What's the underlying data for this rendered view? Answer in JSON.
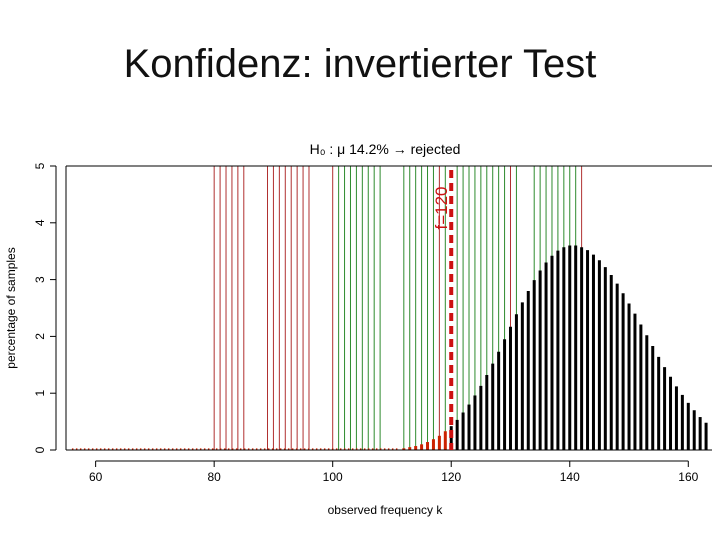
{
  "slide": {
    "title": "Konfidenz: invertierter Test"
  },
  "chart_data": {
    "type": "bar",
    "title": "H₀ : μ   14.2% → rejected",
    "xlabel": "observed frequency k",
    "ylabel": "percentage of samples",
    "xlim": [
      55,
      164
    ],
    "ylim": [
      0,
      5
    ],
    "x_ticks": [
      60,
      80,
      100,
      120,
      140,
      160
    ],
    "y_ticks": [
      0,
      1,
      2,
      3,
      4,
      5
    ],
    "colors": {
      "lower_tail": "#cc2200",
      "upper_mass": "#000000",
      "rejected_mu": "#b03030",
      "accepted_mu": "#2e8b2e",
      "reference": "#cc1111"
    },
    "reference_line": {
      "x": 120,
      "label": "f=120"
    },
    "rejected_mu_values": [
      80,
      81,
      82,
      83,
      84,
      85,
      89,
      90,
      91,
      92,
      93,
      94,
      95,
      96,
      100,
      118,
      130,
      142
    ],
    "accepted_mu_values": [
      101,
      102,
      103,
      104,
      105,
      106,
      107,
      108,
      112,
      113,
      114,
      115,
      116,
      117,
      119,
      121,
      122,
      123,
      124,
      125,
      126,
      127,
      128,
      129,
      131,
      134,
      135,
      136,
      137,
      138,
      139,
      140,
      141
    ],
    "distribution": {
      "k": [
        112,
        113,
        114,
        115,
        116,
        117,
        118,
        119,
        120,
        121,
        122,
        123,
        124,
        125,
        126,
        127,
        128,
        129,
        130,
        131,
        132,
        133,
        134,
        135,
        136,
        137,
        138,
        139,
        140,
        141,
        142,
        143,
        144,
        145,
        146,
        147,
        148,
        149,
        150,
        151,
        152,
        153,
        154,
        155,
        156,
        157,
        158,
        159,
        160,
        161,
        162,
        163
      ],
      "pct": [
        0.03,
        0.05,
        0.07,
        0.1,
        0.14,
        0.19,
        0.25,
        0.33,
        0.42,
        0.53,
        0.66,
        0.8,
        0.96,
        1.13,
        1.32,
        1.52,
        1.73,
        1.95,
        2.17,
        2.39,
        2.6,
        2.8,
        2.99,
        3.16,
        3.3,
        3.42,
        3.51,
        3.57,
        3.6,
        3.6,
        3.57,
        3.52,
        3.44,
        3.34,
        3.22,
        3.08,
        2.93,
        2.76,
        2.58,
        2.4,
        2.21,
        2.02,
        1.83,
        1.64,
        1.46,
        1.29,
        1.12,
        0.97,
        0.83,
        0.7,
        0.58,
        0.48
      ]
    }
  }
}
